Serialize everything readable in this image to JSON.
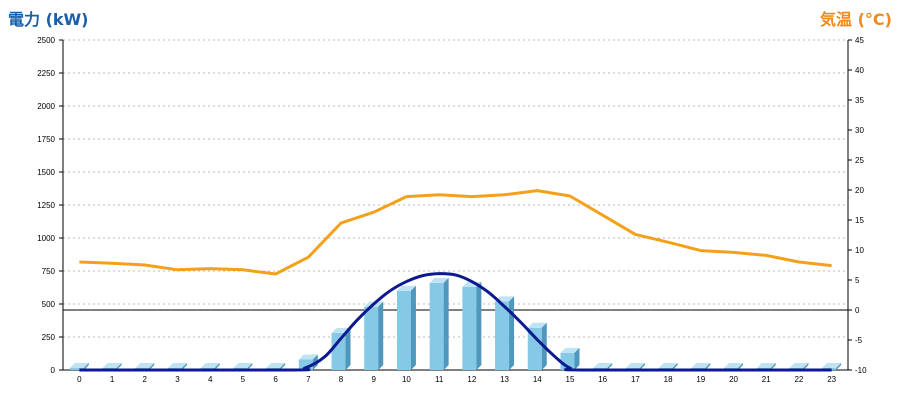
{
  "chart_data": {
    "type": "bar",
    "title": "",
    "left_axis": {
      "label": "電力 (kW)",
      "color": "#1a5fa8",
      "range": [
        0,
        2500
      ],
      "ticks": [
        0,
        250,
        500,
        750,
        1000,
        1250,
        1500,
        1750,
        2000,
        2250,
        2500
      ]
    },
    "right_axis": {
      "label": "気温 (°C)",
      "color": "#f08a1c",
      "range": [
        -10,
        45
      ],
      "ticks": [
        -10,
        -5,
        0,
        5,
        10,
        15,
        20,
        25,
        30,
        35,
        40,
        45
      ]
    },
    "categories": [
      "0",
      "1",
      "2",
      "3",
      "4",
      "5",
      "6",
      "7",
      "8",
      "9",
      "10",
      "11",
      "12",
      "13",
      "14",
      "15",
      "16",
      "17",
      "18",
      "19",
      "20",
      "21",
      "22",
      "23"
    ],
    "grid": true,
    "series": [
      {
        "type": "bar-3d",
        "axis": "left",
        "color": "#86c9e6",
        "values": [
          15,
          15,
          15,
          15,
          15,
          15,
          15,
          80,
          280,
          480,
          600,
          660,
          630,
          520,
          320,
          130,
          15,
          15,
          15,
          15,
          15,
          15,
          15,
          15
        ]
      },
      {
        "type": "curve",
        "axis": "left",
        "color": "#0d1a8f",
        "x": [
          0,
          6.4,
          6.9,
          7.5,
          8,
          8.5,
          9,
          9.5,
          10,
          10.5,
          11,
          11.5,
          12,
          12.5,
          13,
          13.5,
          14,
          14.5,
          15,
          15.6,
          23
        ],
        "values": [
          0,
          0,
          15,
          100,
          240,
          380,
          500,
          600,
          670,
          715,
          730,
          720,
          670,
          590,
          480,
          360,
          230,
          110,
          15,
          0,
          0
        ]
      },
      {
        "type": "line",
        "axis": "right",
        "color": "#f5a01a",
        "values": [
          8,
          7.8,
          7.5,
          6.7,
          6.9,
          6.7,
          6.0,
          8.8,
          14.5,
          16.3,
          18.9,
          19.2,
          18.9,
          19.2,
          19.9,
          19.0,
          15.8,
          12.6,
          11.3,
          9.9,
          9.6,
          9.1,
          8.0,
          7.4
        ]
      }
    ]
  }
}
